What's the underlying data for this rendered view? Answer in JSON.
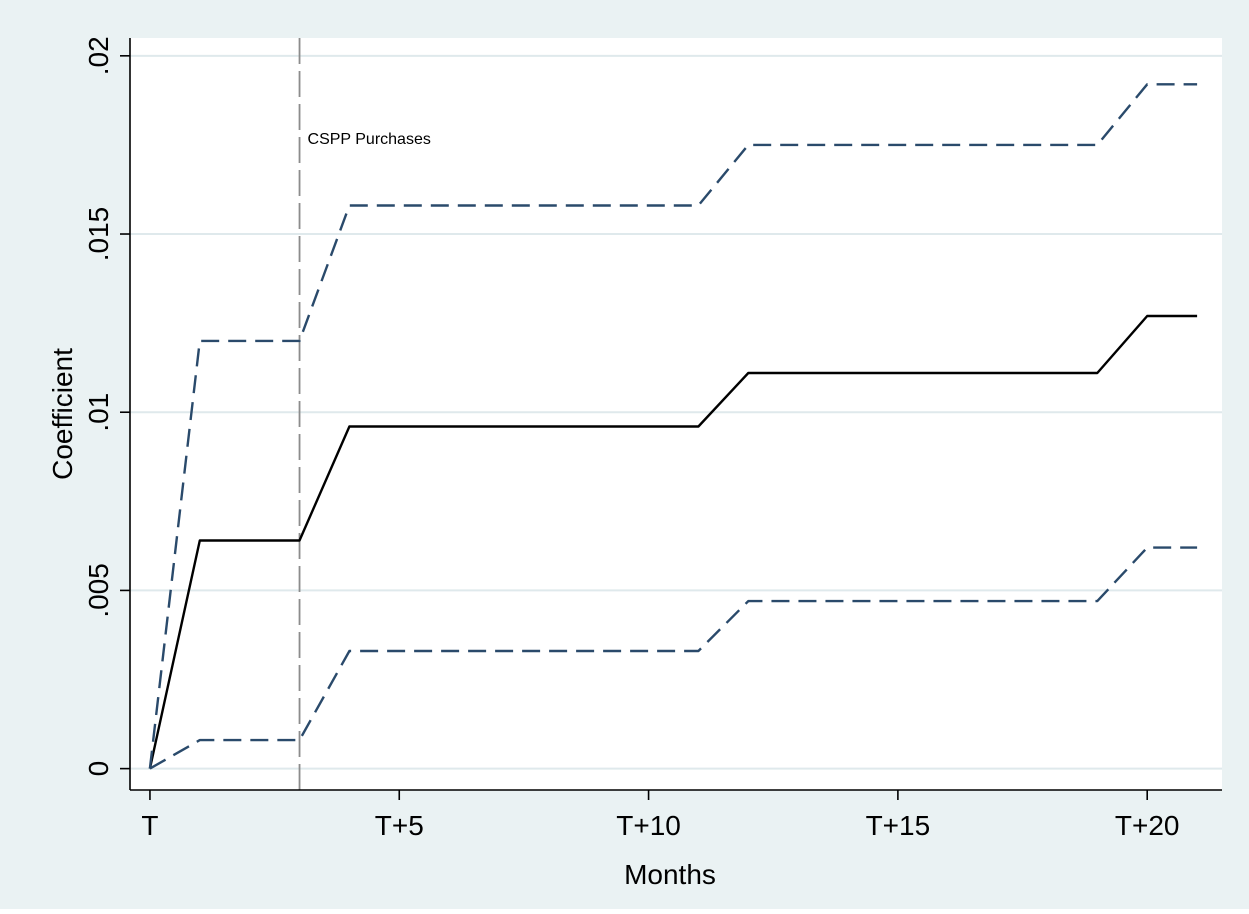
{
  "chart_data": {
    "type": "line",
    "xlabel": "Months",
    "ylabel": "Coefficient",
    "x_ticks": [
      {
        "value": 0,
        "label": "T"
      },
      {
        "value": 5,
        "label": "T+5"
      },
      {
        "value": 10,
        "label": "T+10"
      },
      {
        "value": 15,
        "label": "T+15"
      },
      {
        "value": 20,
        "label": "T+20"
      }
    ],
    "y_ticks": [
      {
        "value": 0,
        "label": "0"
      },
      {
        "value": 0.005,
        "label": ".005"
      },
      {
        "value": 0.01,
        "label": ".01"
      },
      {
        "value": 0.015,
        "label": ".015"
      },
      {
        "value": 0.02,
        "label": ".02"
      }
    ],
    "xlim": [
      -0.4,
      21.5
    ],
    "ylim": [
      -0.0006,
      0.0205
    ],
    "grid": "horizontal",
    "x": [
      0,
      1,
      3,
      4,
      11,
      12,
      19,
      20,
      21
    ],
    "series": [
      {
        "role": "estimate",
        "style": "solid",
        "color": "#000000",
        "values": [
          0,
          0.0064,
          0.0064,
          0.0096,
          0.0096,
          0.0111,
          0.0111,
          0.0127,
          0.0127
        ]
      },
      {
        "role": "upper-ci",
        "style": "dashed",
        "color": "#2a4a6b",
        "values": [
          0,
          0.012,
          0.012,
          0.0158,
          0.0158,
          0.0175,
          0.0175,
          0.0192,
          0.0192
        ]
      },
      {
        "role": "lower-ci",
        "style": "dashed",
        "color": "#2a4a6b",
        "values": [
          0,
          0.0008,
          0.0008,
          0.0033,
          0.0033,
          0.0047,
          0.0047,
          0.0062,
          0.0062
        ]
      }
    ],
    "annotations": [
      {
        "type": "vline",
        "x": 3,
        "label": "CSPP Purchases",
        "style": "long-dash",
        "color": "#8c8c8c"
      }
    ],
    "colors": {
      "outer_background": "#eaf2f3",
      "plot_background": "#ffffff",
      "grid": "#dfe9ec",
      "axis": "#000000"
    }
  }
}
